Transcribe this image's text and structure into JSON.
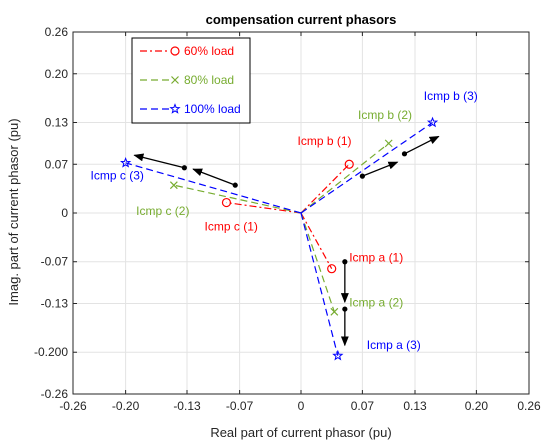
{
  "chart_data": {
    "type": "line",
    "title": "compensation current phasors",
    "xlabel": "Real part of current phasor (pu)",
    "ylabel": "Imag. part of current phasor (pu)",
    "xlim": [
      -0.26,
      0.26
    ],
    "ylim": [
      -0.26,
      0.26
    ],
    "xticks": [
      -0.26,
      -0.2,
      -0.13,
      -0.07,
      0,
      0.07,
      0.13,
      0.2,
      0.26
    ],
    "xtick_labels": [
      "-0.26",
      "-0.20",
      "-0.13",
      "-0.07",
      "0",
      "0.07",
      "0.13",
      "0.20",
      "0.26"
    ],
    "yticks": [
      -0.26,
      -0.2,
      -0.13,
      -0.07,
      0,
      0.07,
      0.13,
      0.2,
      0.26
    ],
    "ytick_labels": [
      "-0.26",
      "-0.200",
      "-0.13",
      "-0.07",
      "0",
      "0.07",
      "0.13",
      "0.20",
      "0.26"
    ],
    "grid": true,
    "legend_position": "top-left",
    "series": [
      {
        "name": "60% load",
        "color": "#ff0000",
        "line_style": "dash-dot",
        "marker": "circle",
        "phasors": [
          {
            "label": "Icmp a (1)",
            "x": 0.035,
            "y": -0.08
          },
          {
            "label": "Icmp b (1)",
            "x": 0.055,
            "y": 0.07
          },
          {
            "label": "Icmp c (1)",
            "x": -0.085,
            "y": 0.015
          }
        ]
      },
      {
        "name": "80% load",
        "color": "#77ac30",
        "line_style": "dashed",
        "marker": "x",
        "phasors": [
          {
            "label": "Icmp a (2)",
            "x": 0.038,
            "y": -0.142
          },
          {
            "label": "Icmp b (2)",
            "x": 0.1,
            "y": 0.1
          },
          {
            "label": "Icmp c (2)",
            "x": -0.145,
            "y": 0.04
          }
        ]
      },
      {
        "name": "100% load",
        "color": "#0000ff",
        "line_style": "dashed",
        "marker": "pentagram",
        "phasors": [
          {
            "label": "Icmp a (3)",
            "x": 0.042,
            "y": -0.205
          },
          {
            "label": "Icmp b (3)",
            "x": 0.15,
            "y": 0.13
          },
          {
            "label": "Icmp c (3)",
            "x": -0.2,
            "y": 0.072
          }
        ]
      }
    ],
    "arrows": [
      {
        "x1": 0.05,
        "y1": -0.07,
        "x2": 0.05,
        "y2": -0.128
      },
      {
        "x1": 0.05,
        "y1": -0.138,
        "x2": 0.05,
        "y2": -0.19
      },
      {
        "x1": 0.07,
        "y1": 0.053,
        "x2": 0.11,
        "y2": 0.073
      },
      {
        "x1": 0.118,
        "y1": 0.085,
        "x2": 0.157,
        "y2": 0.11
      },
      {
        "x1": -0.075,
        "y1": 0.04,
        "x2": -0.123,
        "y2": 0.063
      },
      {
        "x1": -0.133,
        "y1": 0.065,
        "x2": -0.19,
        "y2": 0.083
      }
    ],
    "label_positions": [
      {
        "text": "Icmp a (1)",
        "x": 0.055,
        "y": -0.07,
        "series": 0
      },
      {
        "text": "Icmp b (1)",
        "x": -0.004,
        "y": 0.098,
        "series": 0
      },
      {
        "text": "Icmp c (1)",
        "x": -0.11,
        "y": -0.025,
        "series": 0
      },
      {
        "text": "Icmp a (2)",
        "x": 0.055,
        "y": -0.134,
        "series": 1
      },
      {
        "text": "Icmp b (2)",
        "x": 0.065,
        "y": 0.135,
        "series": 1
      },
      {
        "text": "Icmp c (2)",
        "x": -0.188,
        "y": -0.003,
        "series": 1
      },
      {
        "text": "Icmp a (3)",
        "x": 0.075,
        "y": -0.195,
        "series": 2
      },
      {
        "text": "Icmp b (3)",
        "x": 0.14,
        "y": 0.162,
        "series": 2
      },
      {
        "text": "Icmp c (3)",
        "x": -0.24,
        "y": 0.048,
        "series": 2
      }
    ]
  }
}
